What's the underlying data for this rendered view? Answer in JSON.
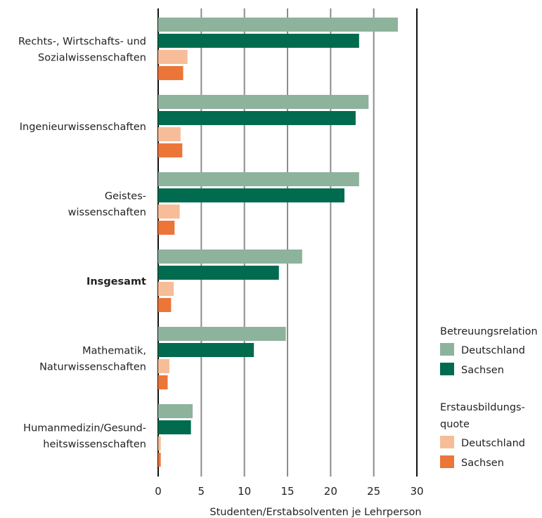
{
  "chart_data": {
    "type": "bar",
    "orientation": "horizontal",
    "categories": [
      [
        "Rechts-, Wirtschafts- und",
        "Sozialwissenschaften"
      ],
      [
        "Ingenieurwissenschaften"
      ],
      [
        "Geistes-",
        "wissenschaften"
      ],
      [
        "Insgesamt"
      ],
      [
        "Mathematik,",
        "Naturwissenschaften"
      ],
      [
        "Humanmedizin/Gesund-",
        "heitswissenschaften"
      ]
    ],
    "bold_category_index": 3,
    "series": [
      {
        "group": "Betreuungsrelation",
        "name": "Deutschland",
        "color": "#8db39c",
        "values": [
          27.8,
          24.4,
          23.3,
          16.7,
          14.8,
          4.0
        ]
      },
      {
        "group": "Betreuungsrelation",
        "name": "Sachsen",
        "color": "#006b4e",
        "values": [
          23.3,
          22.9,
          21.6,
          14.0,
          11.1,
          3.8
        ]
      },
      {
        "group": "Erstausbildungsquote",
        "name": "Deutschland",
        "color": "#f7bd98",
        "values": [
          3.4,
          2.6,
          2.5,
          1.8,
          1.3,
          0.3
        ]
      },
      {
        "group": "Erstausbildungsquote",
        "name": "Sachsen",
        "color": "#ec7538",
        "values": [
          2.9,
          2.8,
          1.9,
          1.5,
          1.1,
          0.3
        ]
      }
    ],
    "xlim": [
      0,
      30
    ],
    "x_ticks": [
      "0",
      "5",
      "10",
      "15",
      "20",
      "25",
      "30"
    ],
    "xlabel": "Studenten/Erstabsolventen je Lehrperson",
    "ylabel": "",
    "grid": "vertical",
    "legend": {
      "placement": "right",
      "groups": [
        {
          "title": [
            "Betreuungsrelation"
          ],
          "entries": [
            {
              "label": "Deutschland",
              "color": "#8db39c"
            },
            {
              "label": "Sachsen",
              "color": "#006b4e"
            }
          ]
        },
        {
          "title": [
            "Erstausbildungs-",
            "quote"
          ],
          "entries": [
            {
              "label": "Deutschland",
              "color": "#f7bd98"
            },
            {
              "label": "Sachsen",
              "color": "#ec7538"
            }
          ]
        }
      ]
    }
  }
}
